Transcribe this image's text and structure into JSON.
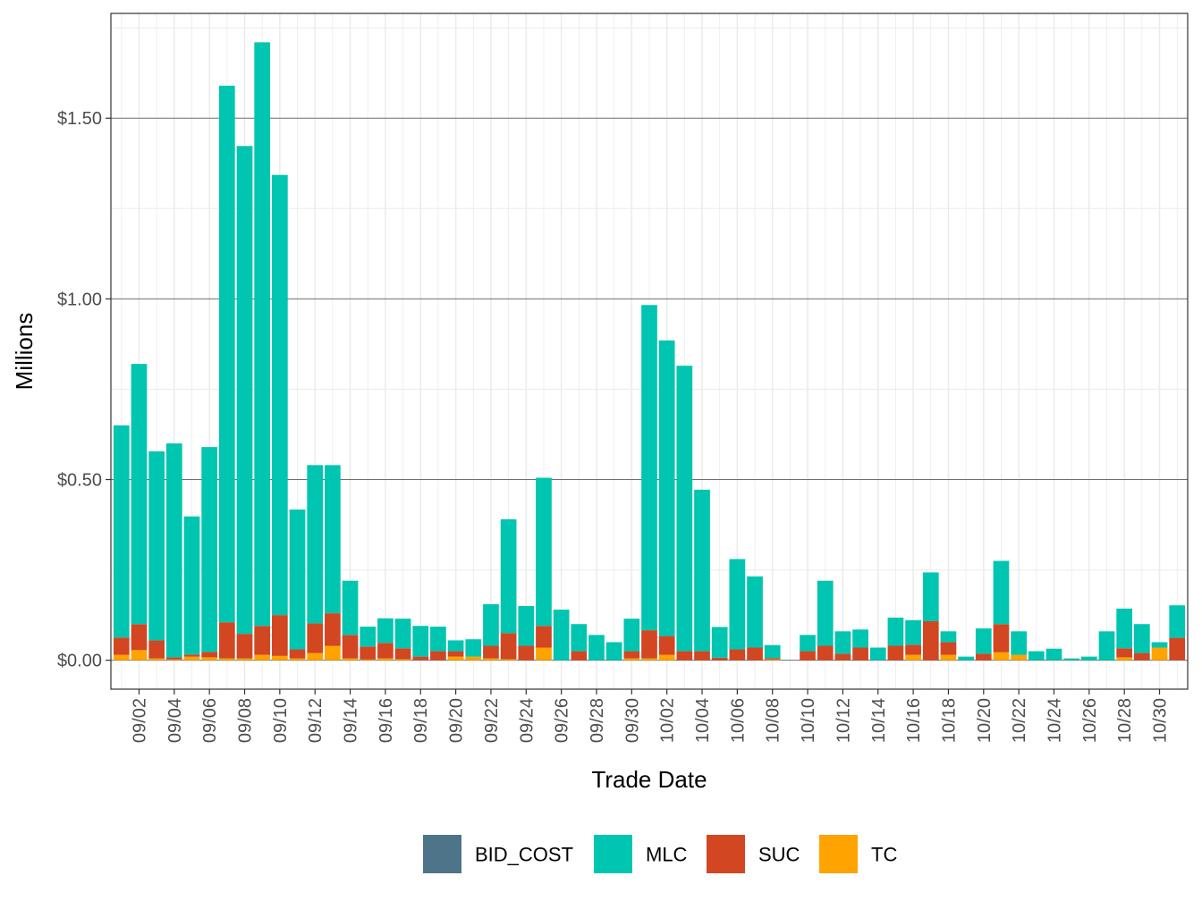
{
  "chart_data": {
    "type": "bar",
    "stacked": true,
    "xlabel": "Trade Date",
    "ylabel": "Millions",
    "ylim": [
      -0.08,
      1.79
    ],
    "y_ticks": [
      0,
      0.5,
      1.0,
      1.5
    ],
    "y_tick_labels": [
      "$0.00",
      "$0.50",
      "$1.00",
      "$1.50"
    ],
    "grid": true,
    "legend_position": "bottom",
    "categories": [
      "09/01",
      "09/02",
      "09/03",
      "09/04",
      "09/05",
      "09/06",
      "09/07",
      "09/08",
      "09/09",
      "09/10",
      "09/11",
      "09/12",
      "09/13",
      "09/14",
      "09/15",
      "09/16",
      "09/17",
      "09/18",
      "09/19",
      "09/20",
      "09/21",
      "09/22",
      "09/23",
      "09/24",
      "09/25",
      "09/26",
      "09/27",
      "09/28",
      "09/29",
      "09/30",
      "10/01",
      "10/02",
      "10/03",
      "10/04",
      "10/05",
      "10/06",
      "10/07",
      "10/08",
      "10/09",
      "10/10",
      "10/11",
      "10/12",
      "10/13",
      "10/14",
      "10/15",
      "10/16",
      "10/17",
      "10/18",
      "10/19",
      "10/20",
      "10/21",
      "10/22",
      "10/23",
      "10/24",
      "10/25",
      "10/26",
      "10/27",
      "10/28",
      "10/29",
      "10/30",
      "10/31"
    ],
    "x_tick_labels": [
      "09/02",
      "09/04",
      "09/06",
      "09/08",
      "09/10",
      "09/12",
      "09/14",
      "09/16",
      "09/18",
      "09/20",
      "09/22",
      "09/24",
      "09/26",
      "09/28",
      "09/30",
      "10/02",
      "10/04",
      "10/06",
      "10/08",
      "10/10",
      "10/12",
      "10/14",
      "10/16",
      "10/18",
      "10/20",
      "10/22",
      "10/24",
      "10/26",
      "10/28",
      "10/30"
    ],
    "series": [
      {
        "name": "BID_COST",
        "color": "#4e7489",
        "values": [
          0,
          0,
          0,
          0,
          0,
          0,
          0,
          0,
          0,
          0,
          0,
          0,
          0,
          0,
          0,
          0,
          0,
          0,
          0,
          0,
          0,
          0,
          0,
          0,
          0,
          0,
          0,
          0,
          0,
          0,
          0,
          0,
          0,
          0,
          0,
          0,
          0,
          0,
          0,
          0,
          0,
          0,
          0,
          0,
          0,
          0,
          0,
          0,
          0,
          0,
          0,
          0,
          0,
          0,
          0,
          0,
          0,
          0,
          0,
          0,
          0
        ]
      },
      {
        "name": "TC",
        "color": "#ffa300",
        "values": [
          0.015,
          0.028,
          0.005,
          0.002,
          0.01,
          0.008,
          0.005,
          0.005,
          0.015,
          0.012,
          0.005,
          0.02,
          0.04,
          0.005,
          0.002,
          0.005,
          0.003,
          0,
          0,
          0.01,
          0.01,
          0.005,
          0.003,
          0,
          0.035,
          0,
          0,
          0,
          0,
          0.005,
          0.005,
          0.015,
          0,
          0,
          0,
          0,
          0,
          0.002,
          0,
          0,
          0,
          0,
          0,
          0,
          0,
          0.015,
          0,
          0.015,
          0,
          0,
          0.022,
          0.015,
          0,
          0,
          0,
          0,
          0,
          0.008,
          0,
          0.035,
          0
        ]
      },
      {
        "name": "SUC",
        "color": "#d24621",
        "values": [
          0.048,
          0.072,
          0.05,
          0.006,
          0.006,
          0.015,
          0.1,
          0.068,
          0.08,
          0.113,
          0.025,
          0.082,
          0.09,
          0.065,
          0.036,
          0.043,
          0.03,
          0.01,
          0.025,
          0.015,
          0,
          0.035,
          0.072,
          0.04,
          0.06,
          0,
          0.025,
          0,
          0,
          0.02,
          0.078,
          0.052,
          0.025,
          0.025,
          0.007,
          0.03,
          0.035,
          0.004,
          0,
          0.025,
          0.04,
          0.018,
          0.035,
          0,
          0.04,
          0.028,
          0.108,
          0.035,
          0,
          0.018,
          0.078,
          0,
          0,
          0,
          0,
          0,
          0,
          0.025,
          0.02,
          0,
          0.062
        ]
      },
      {
        "name": "MLC",
        "color": "#00c5b0",
        "values": [
          0.587,
          0.72,
          0.523,
          0.592,
          0.382,
          0.567,
          1.485,
          1.35,
          1.615,
          1.218,
          0.387,
          0.438,
          0.41,
          0.15,
          0.055,
          0.068,
          0.082,
          0.085,
          0.068,
          0.03,
          0.048,
          0.115,
          0.315,
          0.11,
          0.41,
          0.14,
          0.075,
          0.07,
          0.05,
          0.09,
          0.9,
          0.818,
          0.79,
          0.447,
          0.085,
          0.25,
          0.197,
          0.036,
          0,
          0.045,
          0.18,
          0.062,
          0.05,
          0.035,
          0.078,
          0.068,
          0.135,
          0.03,
          0.01,
          0.07,
          0.175,
          0.065,
          0.025,
          0.032,
          0.005,
          0.01,
          0.08,
          0.11,
          0.08,
          0.015,
          0.09
        ]
      }
    ]
  }
}
